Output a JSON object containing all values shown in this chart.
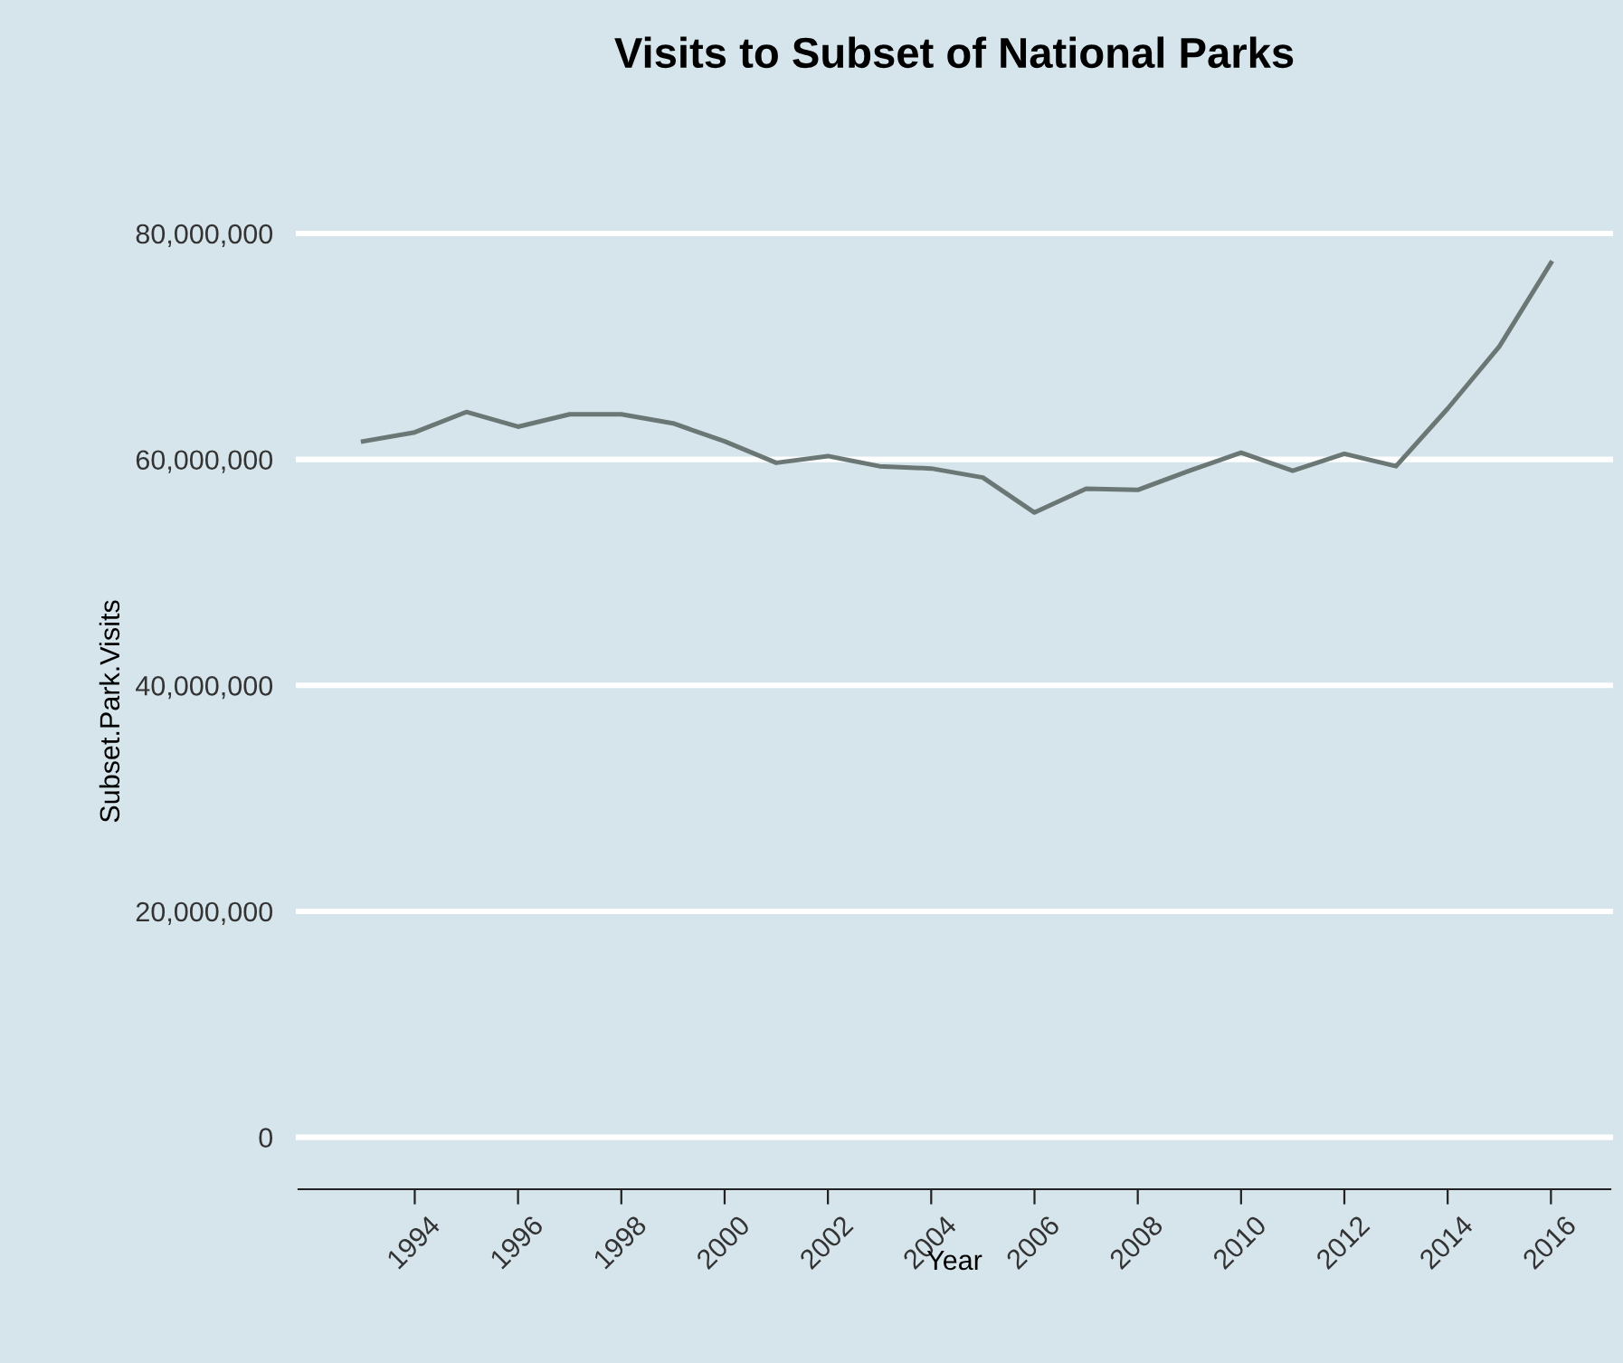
{
  "chart_data": {
    "type": "line",
    "title": "Visits to Subset of National Parks",
    "xlabel": "Year",
    "ylabel": "Subset.Park.Visits",
    "x": [
      1993,
      1994,
      1995,
      1996,
      1997,
      1998,
      1999,
      2000,
      2001,
      2002,
      2003,
      2004,
      2005,
      2006,
      2007,
      2008,
      2009,
      2010,
      2011,
      2012,
      2013,
      2014,
      2015,
      2016
    ],
    "series": [
      {
        "color": "#6b7775",
        "values": [
          61600000,
          62400000,
          64200000,
          62900000,
          64000000,
          64000000,
          63200000,
          61600000,
          59700000,
          60300000,
          59400000,
          59200000,
          58400000,
          55300000,
          57400000,
          57300000,
          59000000,
          60600000,
          59000000,
          60500000,
          59400000,
          64500000,
          70000000,
          77400000
        ]
      }
    ],
    "xlim": [
      1991.75,
      2017.15
    ],
    "xticks": [
      1994,
      1996,
      1998,
      2000,
      2002,
      2004,
      2006,
      2008,
      2010,
      2012,
      2014,
      2016
    ],
    "ylim": [
      -4600000,
      80000000
    ],
    "yticks": [
      {
        "value": 0,
        "label": "0"
      },
      {
        "value": 20000000,
        "label": "20,000,000"
      },
      {
        "value": 40000000,
        "label": "40,000,000"
      },
      {
        "value": 60000000,
        "label": "60,000,000"
      },
      {
        "value": 80000000,
        "label": "80,000,000"
      }
    ],
    "grid": "y",
    "legend": false,
    "marker": "none",
    "line_style": "solid"
  }
}
